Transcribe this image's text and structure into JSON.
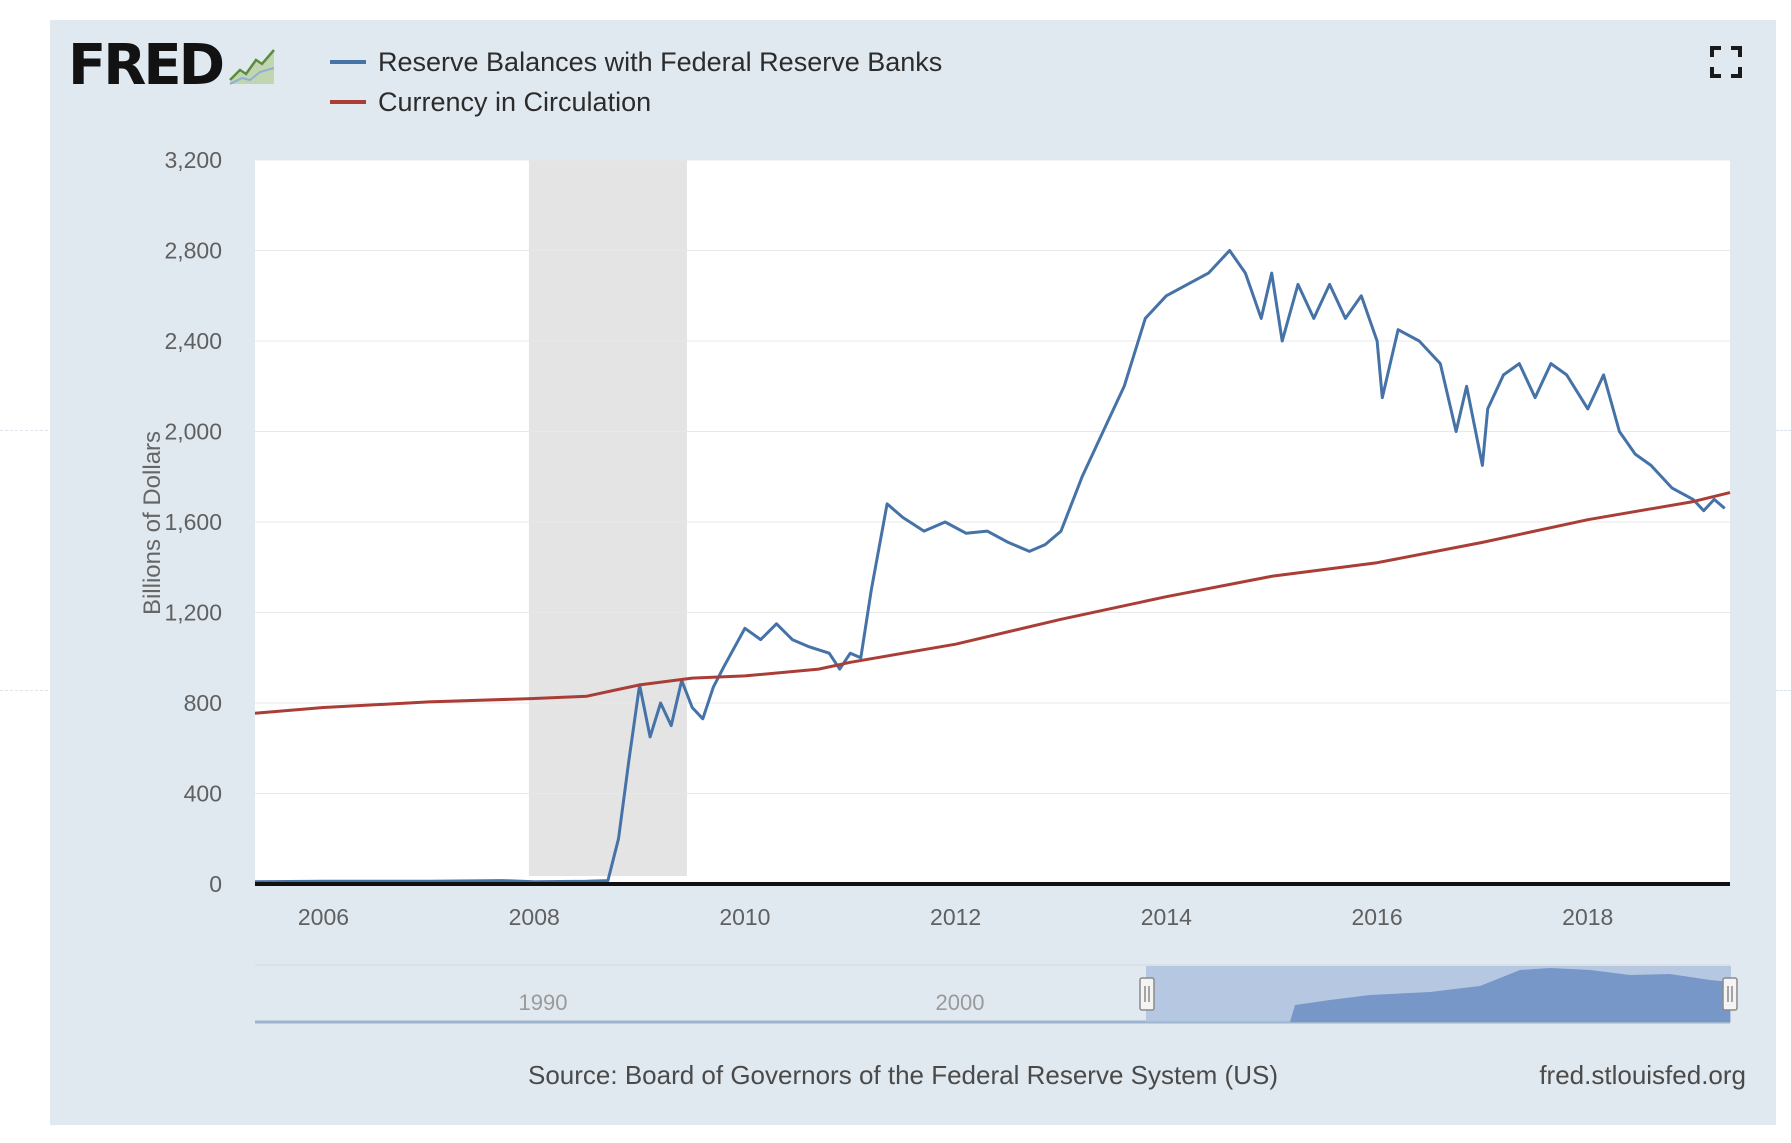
{
  "brand": {
    "logo_text": "FRED",
    "logo_icon": "chart-line-icon"
  },
  "controls": {
    "fullscreen_icon": "fullscreen-icon"
  },
  "chart_data": {
    "type": "line",
    "title": "",
    "xlabel": "",
    "ylabel": "Billions of Dollars",
    "xlim": [
      2005.35,
      2019.35
    ],
    "ylim": [
      0,
      3200
    ],
    "y_ticks": [
      0,
      400,
      800,
      1200,
      1600,
      2000,
      2400,
      2800,
      3200
    ],
    "y_tick_labels": [
      "0",
      "400",
      "800",
      "1,200",
      "1,600",
      "2,000",
      "2,400",
      "2,800",
      "3,200"
    ],
    "x_ticks": [
      2006,
      2008,
      2010,
      2012,
      2014,
      2016,
      2018
    ],
    "x_tick_labels": [
      "2006",
      "2008",
      "2010",
      "2012",
      "2014",
      "2016",
      "2018"
    ],
    "grid": true,
    "legend_position": "top-left",
    "recession_band": [
      2007.95,
      2009.45
    ],
    "series": [
      {
        "name": "Reserve Balances with Federal Reserve Banks",
        "color": "#4572a7",
        "x": [
          2005.35,
          2006.0,
          2007.0,
          2007.7,
          2008.0,
          2008.5,
          2008.7,
          2008.8,
          2008.9,
          2009.0,
          2009.1,
          2009.2,
          2009.3,
          2009.4,
          2009.5,
          2009.6,
          2009.7,
          2009.8,
          2010.0,
          2010.15,
          2010.3,
          2010.45,
          2010.6,
          2010.8,
          2010.9,
          2011.0,
          2011.1,
          2011.2,
          2011.35,
          2011.5,
          2011.7,
          2011.9,
          2012.1,
          2012.3,
          2012.5,
          2012.7,
          2012.85,
          2013.0,
          2013.2,
          2013.4,
          2013.6,
          2013.8,
          2014.0,
          2014.2,
          2014.4,
          2014.6,
          2014.75,
          2014.9,
          2015.0,
          2015.1,
          2015.25,
          2015.4,
          2015.55,
          2015.7,
          2015.85,
          2016.0,
          2016.05,
          2016.2,
          2016.4,
          2016.6,
          2016.75,
          2016.85,
          2017.0,
          2017.05,
          2017.2,
          2017.35,
          2017.5,
          2017.65,
          2017.8,
          2018.0,
          2018.15,
          2018.3,
          2018.45,
          2018.6,
          2018.8,
          2019.0,
          2019.1,
          2019.2,
          2019.3
        ],
        "y": [
          10,
          12,
          12,
          15,
          10,
          12,
          15,
          200,
          550,
          880,
          650,
          800,
          700,
          900,
          780,
          730,
          870,
          960,
          1130,
          1080,
          1150,
          1080,
          1050,
          1020,
          950,
          1020,
          1000,
          1300,
          1680,
          1620,
          1560,
          1600,
          1550,
          1560,
          1510,
          1470,
          1500,
          1560,
          1800,
          2000,
          2200,
          2500,
          2600,
          2650,
          2700,
          2800,
          2700,
          2500,
          2700,
          2400,
          2650,
          2500,
          2650,
          2500,
          2600,
          2400,
          2150,
          2450,
          2400,
          2300,
          2000,
          2200,
          1850,
          2100,
          2250,
          2300,
          2150,
          2300,
          2250,
          2100,
          2250,
          2000,
          1900,
          1850,
          1750,
          1700,
          1650,
          1700,
          1660
        ]
      },
      {
        "name": "Currency in Circulation",
        "color": "#aa3e37",
        "x": [
          2005.35,
          2006.0,
          2007.0,
          2008.0,
          2008.5,
          2008.8,
          2009.0,
          2009.5,
          2010.0,
          2010.7,
          2011.0,
          2012.0,
          2013.0,
          2014.0,
          2015.0,
          2016.0,
          2017.0,
          2018.0,
          2019.0,
          2019.35
        ],
        "y": [
          755,
          780,
          805,
          820,
          830,
          860,
          880,
          910,
          920,
          950,
          980,
          1060,
          1170,
          1270,
          1360,
          1420,
          1510,
          1610,
          1690,
          1730
        ]
      }
    ],
    "navigator": {
      "tick_labels": [
        "1990",
        "2000"
      ],
      "selected_range": "2005–2019"
    },
    "source": "Source: Board of Governors of the Federal Reserve System (US)",
    "site": "fred.stlouisfed.org"
  }
}
